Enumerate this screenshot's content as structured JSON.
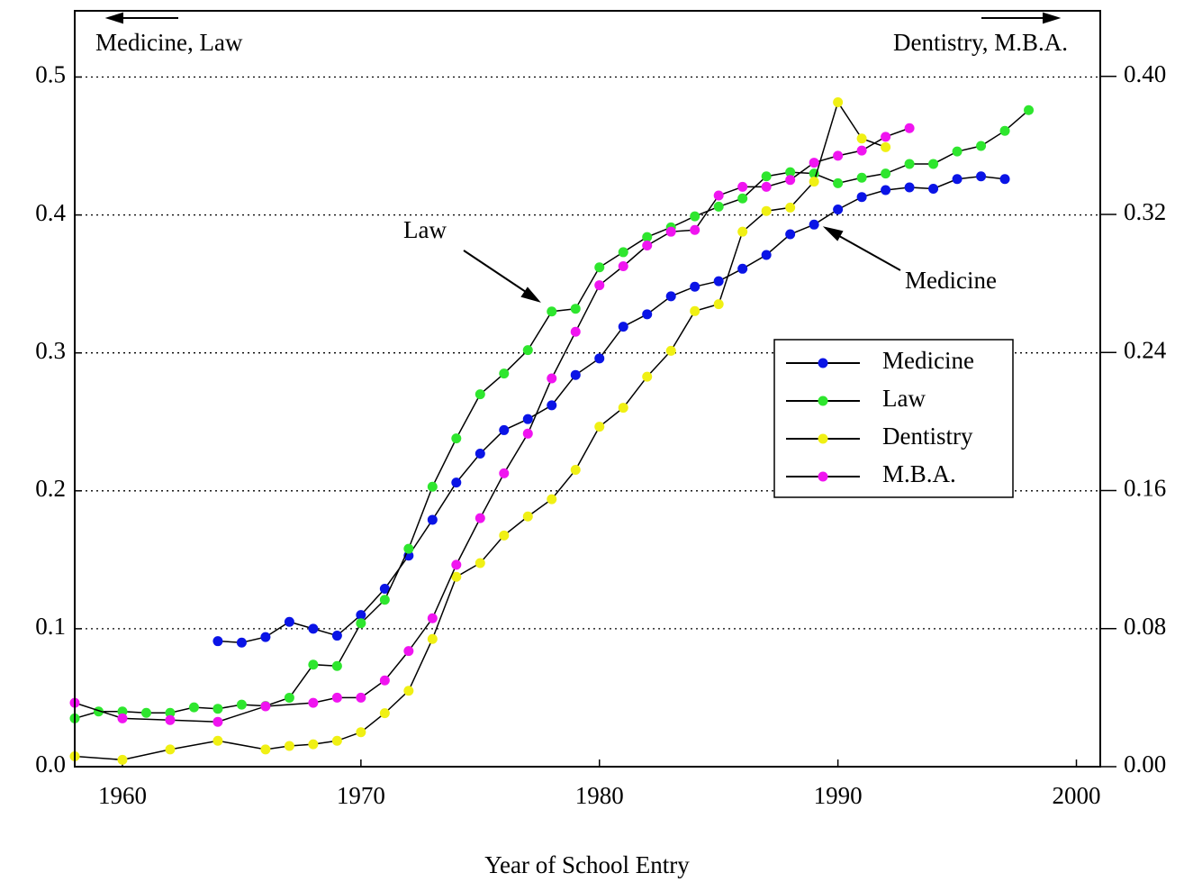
{
  "chart_data": {
    "type": "line",
    "x_label": "Year of School Entry",
    "annotations": [
      "Medicine, Law",
      "Dentistry, M.B.A.",
      "Law",
      "Medicine"
    ],
    "xlim": [
      1958,
      2001
    ],
    "xticks": [
      1960,
      1970,
      1980,
      1990,
      2000
    ],
    "ylim": [
      0,
      0.548
    ],
    "yticks": [
      {
        "value": 0,
        "label": "0.0"
      },
      0.1,
      0.2,
      0.3,
      0.4,
      0.5
    ],
    "y2lim": [
      0,
      0.438
    ],
    "y2ticks": [
      {
        "value": 0,
        "label": "0.00"
      },
      0.08,
      0.16,
      0.24,
      0.32,
      {
        "value": 0.4,
        "label": "0.40"
      }
    ],
    "grid": true,
    "legend": "right",
    "series": [
      {
        "name": "Medicine",
        "color": "#0a14e6",
        "axis": "y",
        "x": [
          1964,
          1965,
          1966,
          1967,
          1968,
          1969,
          1970,
          1971,
          1972,
          1973,
          1974,
          1975,
          1976,
          1977,
          1978,
          1979,
          1980,
          1981,
          1982,
          1983,
          1984,
          1985,
          1986,
          1987,
          1988,
          1989,
          1990,
          1991,
          1992,
          1993,
          1994,
          1995,
          1996,
          1997
        ],
        "values": [
          0.091,
          0.09,
          0.094,
          0.105,
          0.1,
          0.095,
          0.11,
          0.129,
          0.153,
          0.179,
          0.206,
          0.227,
          0.244,
          0.252,
          0.262,
          0.284,
          0.296,
          0.319,
          0.328,
          0.341,
          0.348,
          0.352,
          0.361,
          0.371,
          0.386,
          0.393,
          0.404,
          0.413,
          0.418,
          0.42,
          0.419,
          0.426,
          0.428,
          0.426
        ]
      },
      {
        "name": "Law",
        "color": "#2ee62e",
        "axis": "y",
        "x": [
          1958,
          1959,
          1960,
          1961,
          1962,
          1963,
          1964,
          1965,
          1966,
          1967,
          1968,
          1969,
          1970,
          1971,
          1972,
          1973,
          1974,
          1975,
          1976,
          1977,
          1978,
          1979,
          1980,
          1981,
          1982,
          1983,
          1984,
          1985,
          1986,
          1987,
          1988,
          1989,
          1990,
          1991,
          1992,
          1993,
          1994,
          1995,
          1996,
          1997,
          1998
        ],
        "values": [
          0.035,
          0.04,
          0.04,
          0.039,
          0.039,
          0.043,
          0.042,
          0.045,
          0.044,
          0.05,
          0.074,
          0.073,
          0.104,
          0.121,
          0.158,
          0.203,
          0.238,
          0.27,
          0.285,
          0.302,
          0.33,
          0.332,
          0.362,
          0.373,
          0.384,
          0.391,
          0.399,
          0.406,
          0.412,
          0.428,
          0.431,
          0.43,
          0.423,
          0.427,
          0.43,
          0.437,
          0.437,
          0.446,
          0.45,
          0.461,
          0.476
        ]
      },
      {
        "name": "Dentistry",
        "color": "#f0f014",
        "axis": "y2",
        "x": [
          1958,
          1960,
          1962,
          1964,
          1966,
          1967,
          1968,
          1969,
          1970,
          1971,
          1972,
          1973,
          1974,
          1975,
          1976,
          1977,
          1978,
          1979,
          1980,
          1981,
          1982,
          1983,
          1984,
          1985,
          1986,
          1987,
          1988,
          1989,
          1990,
          1991,
          1992
        ],
        "values": [
          0.006,
          0.004,
          0.01,
          0.015,
          0.01,
          0.012,
          0.013,
          0.015,
          0.02,
          0.031,
          0.044,
          0.074,
          0.11,
          0.118,
          0.134,
          0.145,
          0.155,
          0.172,
          0.197,
          0.208,
          0.226,
          0.241,
          0.264,
          0.268,
          0.31,
          0.322,
          0.324,
          0.339,
          0.385,
          0.364,
          0.359
        ]
      },
      {
        "name": "M.B.A.",
        "color": "#f014f0",
        "axis": "y2",
        "x": [
          1958,
          1960,
          1962,
          1964,
          1966,
          1968,
          1969,
          1970,
          1971,
          1972,
          1973,
          1974,
          1975,
          1976,
          1977,
          1978,
          1979,
          1980,
          1981,
          1982,
          1983,
          1984,
          1985,
          1986,
          1987,
          1988,
          1989,
          1990,
          1991,
          1992,
          1993
        ],
        "values": [
          0.037,
          0.028,
          0.027,
          0.026,
          0.035,
          0.037,
          0.04,
          0.04,
          0.05,
          0.067,
          0.086,
          0.117,
          0.144,
          0.17,
          0.193,
          0.225,
          0.252,
          0.279,
          0.29,
          0.302,
          0.31,
          0.311,
          0.331,
          0.336,
          0.336,
          0.34,
          0.35,
          0.354,
          0.357,
          0.365,
          0.37
        ]
      }
    ]
  }
}
